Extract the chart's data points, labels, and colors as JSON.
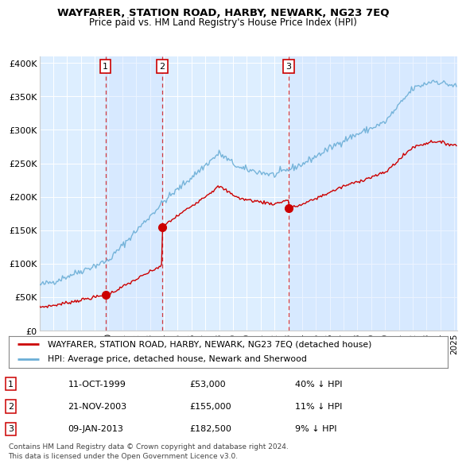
{
  "title": "WAYFARER, STATION ROAD, HARBY, NEWARK, NG23 7EQ",
  "subtitle": "Price paid vs. HM Land Registry's House Price Index (HPI)",
  "legend_property": "WAYFARER, STATION ROAD, HARBY, NEWARK, NG23 7EQ (detached house)",
  "legend_hpi": "HPI: Average price, detached house, Newark and Sherwood",
  "footer1": "Contains HM Land Registry data © Crown copyright and database right 2024.",
  "footer2": "This data is licensed under the Open Government Licence v3.0.",
  "sales": [
    {
      "num": 1,
      "date": "11-OCT-1999",
      "price": 53000,
      "label": "40% ↓ HPI",
      "x_year": 1999.78
    },
    {
      "num": 2,
      "date": "21-NOV-2003",
      "price": 155000,
      "label": "11% ↓ HPI",
      "x_year": 2003.89
    },
    {
      "num": 3,
      "date": "09-JAN-2013",
      "price": 182500,
      "label": "9% ↓ HPI",
      "x_year": 2013.03
    }
  ],
  "hpi_color": "#6baed6",
  "property_color": "#cc0000",
  "ylim": [
    0,
    410000
  ],
  "xlim_start": 1995.3,
  "xlim_end": 2025.2,
  "yticks": [
    0,
    50000,
    100000,
    150000,
    200000,
    250000,
    300000,
    350000,
    400000
  ],
  "ytick_labels": [
    "£0",
    "£50K",
    "£100K",
    "£150K",
    "£200K",
    "£250K",
    "£300K",
    "£350K",
    "£400K"
  ],
  "xticks": [
    1995,
    1996,
    1997,
    1998,
    1999,
    2000,
    2001,
    2002,
    2003,
    2004,
    2005,
    2006,
    2007,
    2008,
    2009,
    2010,
    2011,
    2012,
    2013,
    2014,
    2015,
    2016,
    2017,
    2018,
    2019,
    2020,
    2021,
    2022,
    2023,
    2024,
    2025
  ],
  "plot_bg": "#ddeeff",
  "fig_bg": "#ffffff"
}
